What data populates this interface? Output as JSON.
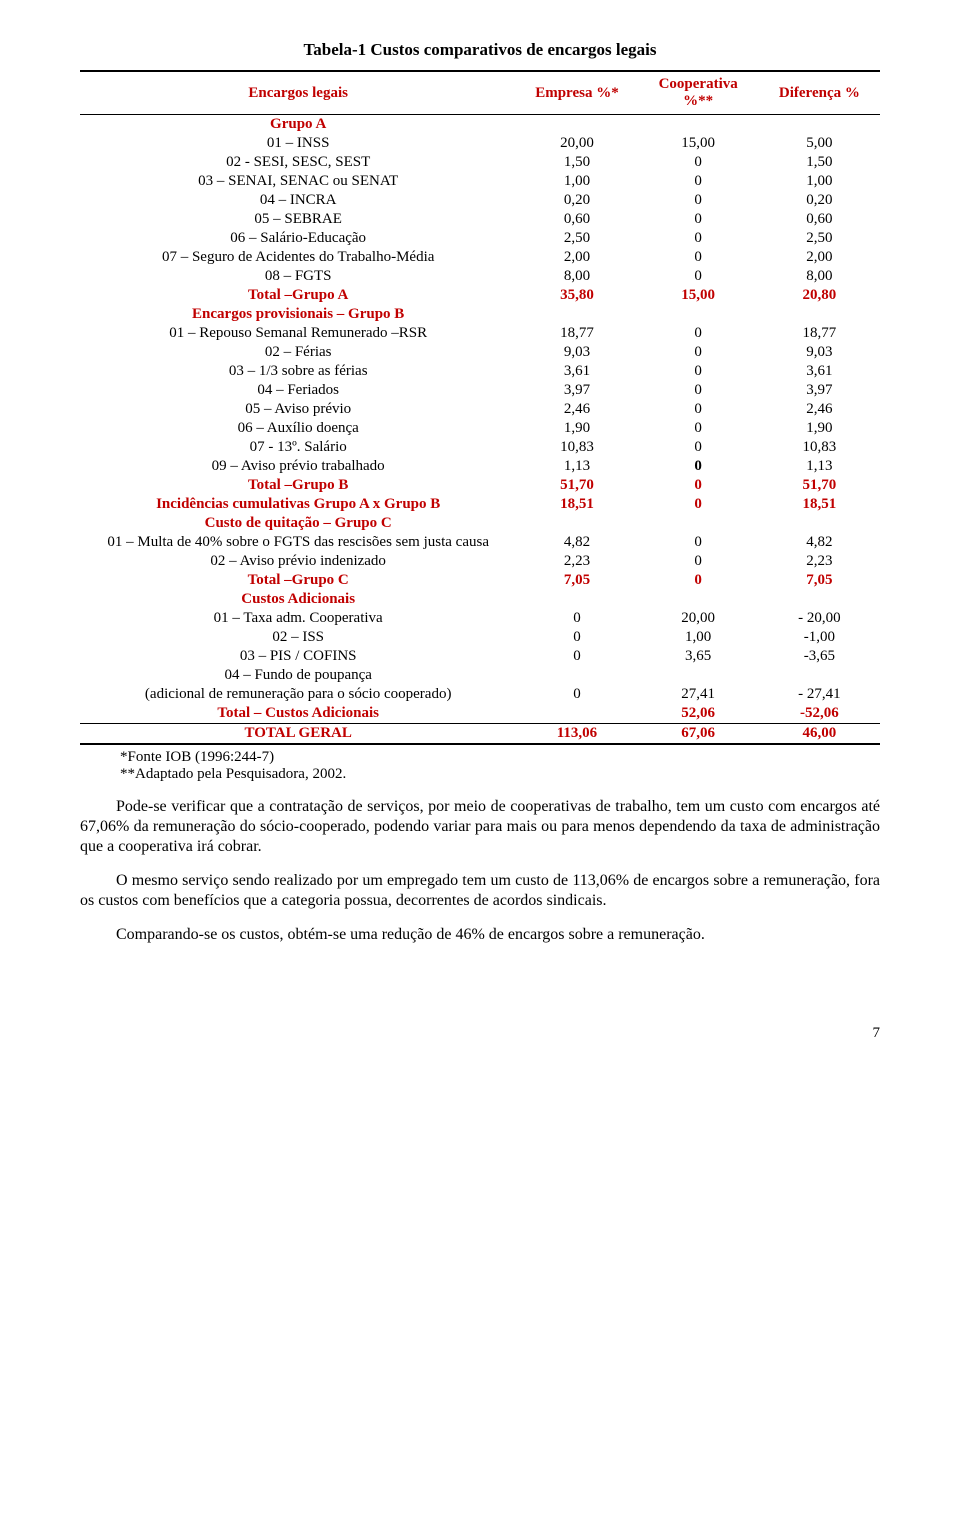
{
  "title": "Tabela-1  Custos comparativos de encargos legais",
  "header": {
    "desc": "Encargos legais",
    "empresa": "Empresa %*",
    "coop": "Cooperativa %**",
    "diff": "Diferença %"
  },
  "rows": [
    {
      "kind": "section",
      "label": "Grupo A"
    },
    {
      "kind": "row",
      "label": "01 – INSS",
      "e": "20,00",
      "c": "15,00",
      "d": "5,00"
    },
    {
      "kind": "row",
      "label": "02 - SESI, SESC, SEST",
      "e": "1,50",
      "c": "0",
      "d": "1,50"
    },
    {
      "kind": "row",
      "label": "03 – SENAI, SENAC ou SENAT",
      "e": "1,00",
      "c": "0",
      "d": "1,00"
    },
    {
      "kind": "row",
      "label": "04 – INCRA",
      "e": "0,20",
      "c": "0",
      "d": "0,20"
    },
    {
      "kind": "row",
      "label": "05 – SEBRAE",
      "e": "0,60",
      "c": "0",
      "d": "0,60"
    },
    {
      "kind": "row",
      "label": "06 – Salário-Educação",
      "e": "2,50",
      "c": "0",
      "d": "2,50"
    },
    {
      "kind": "row",
      "label": "07 – Seguro de Acidentes  do Trabalho-Média",
      "e": "2,00",
      "c": "0",
      "d": "2,00"
    },
    {
      "kind": "row",
      "label": "08 – FGTS",
      "e": "8,00",
      "c": "0",
      "d": "8,00"
    },
    {
      "kind": "total",
      "label": "Total –Grupo A",
      "e": "35,80",
      "c": "15,00",
      "d": "20,80"
    },
    {
      "kind": "section",
      "label": "Encargos provisionais – Grupo B"
    },
    {
      "kind": "row",
      "label": "01 – Repouso Semanal Remunerado –RSR",
      "e": "18,77",
      "c": "0",
      "d": "18,77"
    },
    {
      "kind": "row",
      "label": "02 – Férias",
      "e": "9,03",
      "c": "0",
      "d": "9,03"
    },
    {
      "kind": "row",
      "label": "03 – 1/3 sobre as férias",
      "e": "3,61",
      "c": "0",
      "d": "3,61"
    },
    {
      "kind": "row",
      "label": "04 – Feriados",
      "e": "3,97",
      "c": "0",
      "d": "3,97"
    },
    {
      "kind": "row",
      "label": "05 – Aviso prévio",
      "e": "2,46",
      "c": "0",
      "d": "2,46"
    },
    {
      "kind": "row",
      "label": "06 – Auxílio doença",
      "e": "1,90",
      "c": "0",
      "d": "1,90"
    },
    {
      "kind": "row",
      "label": "07 - 13º. Salário",
      "e": "10,83",
      "c": "0",
      "d": "10,83"
    },
    {
      "kind": "row",
      "label": "09 – Aviso prévio trabalhado",
      "e": "1,13",
      "c": "0",
      "d": "1,13",
      "boldC": true
    },
    {
      "kind": "total",
      "label": "Total –Grupo B",
      "e": "51,70",
      "c": "0",
      "d": "51,70"
    },
    {
      "kind": "total",
      "label": "Incidências cumulativas Grupo A x Grupo B",
      "e": "18,51",
      "c": "0",
      "d": "18,51",
      "two": true
    },
    {
      "kind": "section",
      "label": "Custo de quitação – Grupo C"
    },
    {
      "kind": "row",
      "label": "01 – Multa de 40% sobre o FGTS das rescisões  sem justa causa",
      "e": "4,82",
      "c": "0",
      "d": "4,82",
      "two": true
    },
    {
      "kind": "row",
      "label": "02 – Aviso prévio indenizado",
      "e": "2,23",
      "c": "0",
      "d": "2,23"
    },
    {
      "kind": "total",
      "label": "Total –Grupo C",
      "e": "7,05",
      "c": "0",
      "d": "7,05"
    },
    {
      "kind": "section",
      "label": "Custos Adicionais"
    },
    {
      "kind": "row",
      "label": "01 – Taxa adm. Cooperativa",
      "e": "0",
      "c": "20,00",
      "d": "- 20,00"
    },
    {
      "kind": "row",
      "label": "02 – ISS",
      "e": "0",
      "c": "1,00",
      "d": "-1,00"
    },
    {
      "kind": "row",
      "label": "03 – PIS / COFINS",
      "e": "0",
      "c": "3,65",
      "d": "-3,65"
    },
    {
      "kind": "row",
      "label": "04 – Fundo de poupança",
      "e": "",
      "c": "",
      "d": ""
    },
    {
      "kind": "row",
      "label": "(adicional de remuneração para o sócio cooperado)",
      "e": "0",
      "c": "27,41",
      "d": "- 27,41",
      "two": true
    },
    {
      "kind": "total",
      "label": "Total – Custos Adicionais",
      "e": "",
      "c": "52,06",
      "d": "-52,06"
    },
    {
      "kind": "grand",
      "label": "TOTAL GERAL",
      "e": "113,06",
      "c": "67,06",
      "d": "46,00"
    }
  ],
  "footnotes": {
    "a": "*Fonte IOB (1996:244-7)",
    "b": "**Adaptado pela Pesquisadora, 2002."
  },
  "paragraphs": {
    "p1": "Pode-se verificar que a contratação de serviços, por meio de cooperativas de trabalho, tem um custo com encargos até 67,06% da remuneração do sócio-cooperado, podendo variar para mais ou para menos dependendo da taxa de administração que a cooperativa irá cobrar.",
    "p2": "O mesmo serviço sendo realizado por um empregado tem um custo de 113,06% de encargos sobre a remuneração, fora os custos com benefícios que a categoria possua, decorrentes de acordos sindicais.",
    "p3": "Comparando-se os custos, obtém-se uma redução de 46% de encargos sobre a remuneração."
  },
  "pagenum": "7"
}
